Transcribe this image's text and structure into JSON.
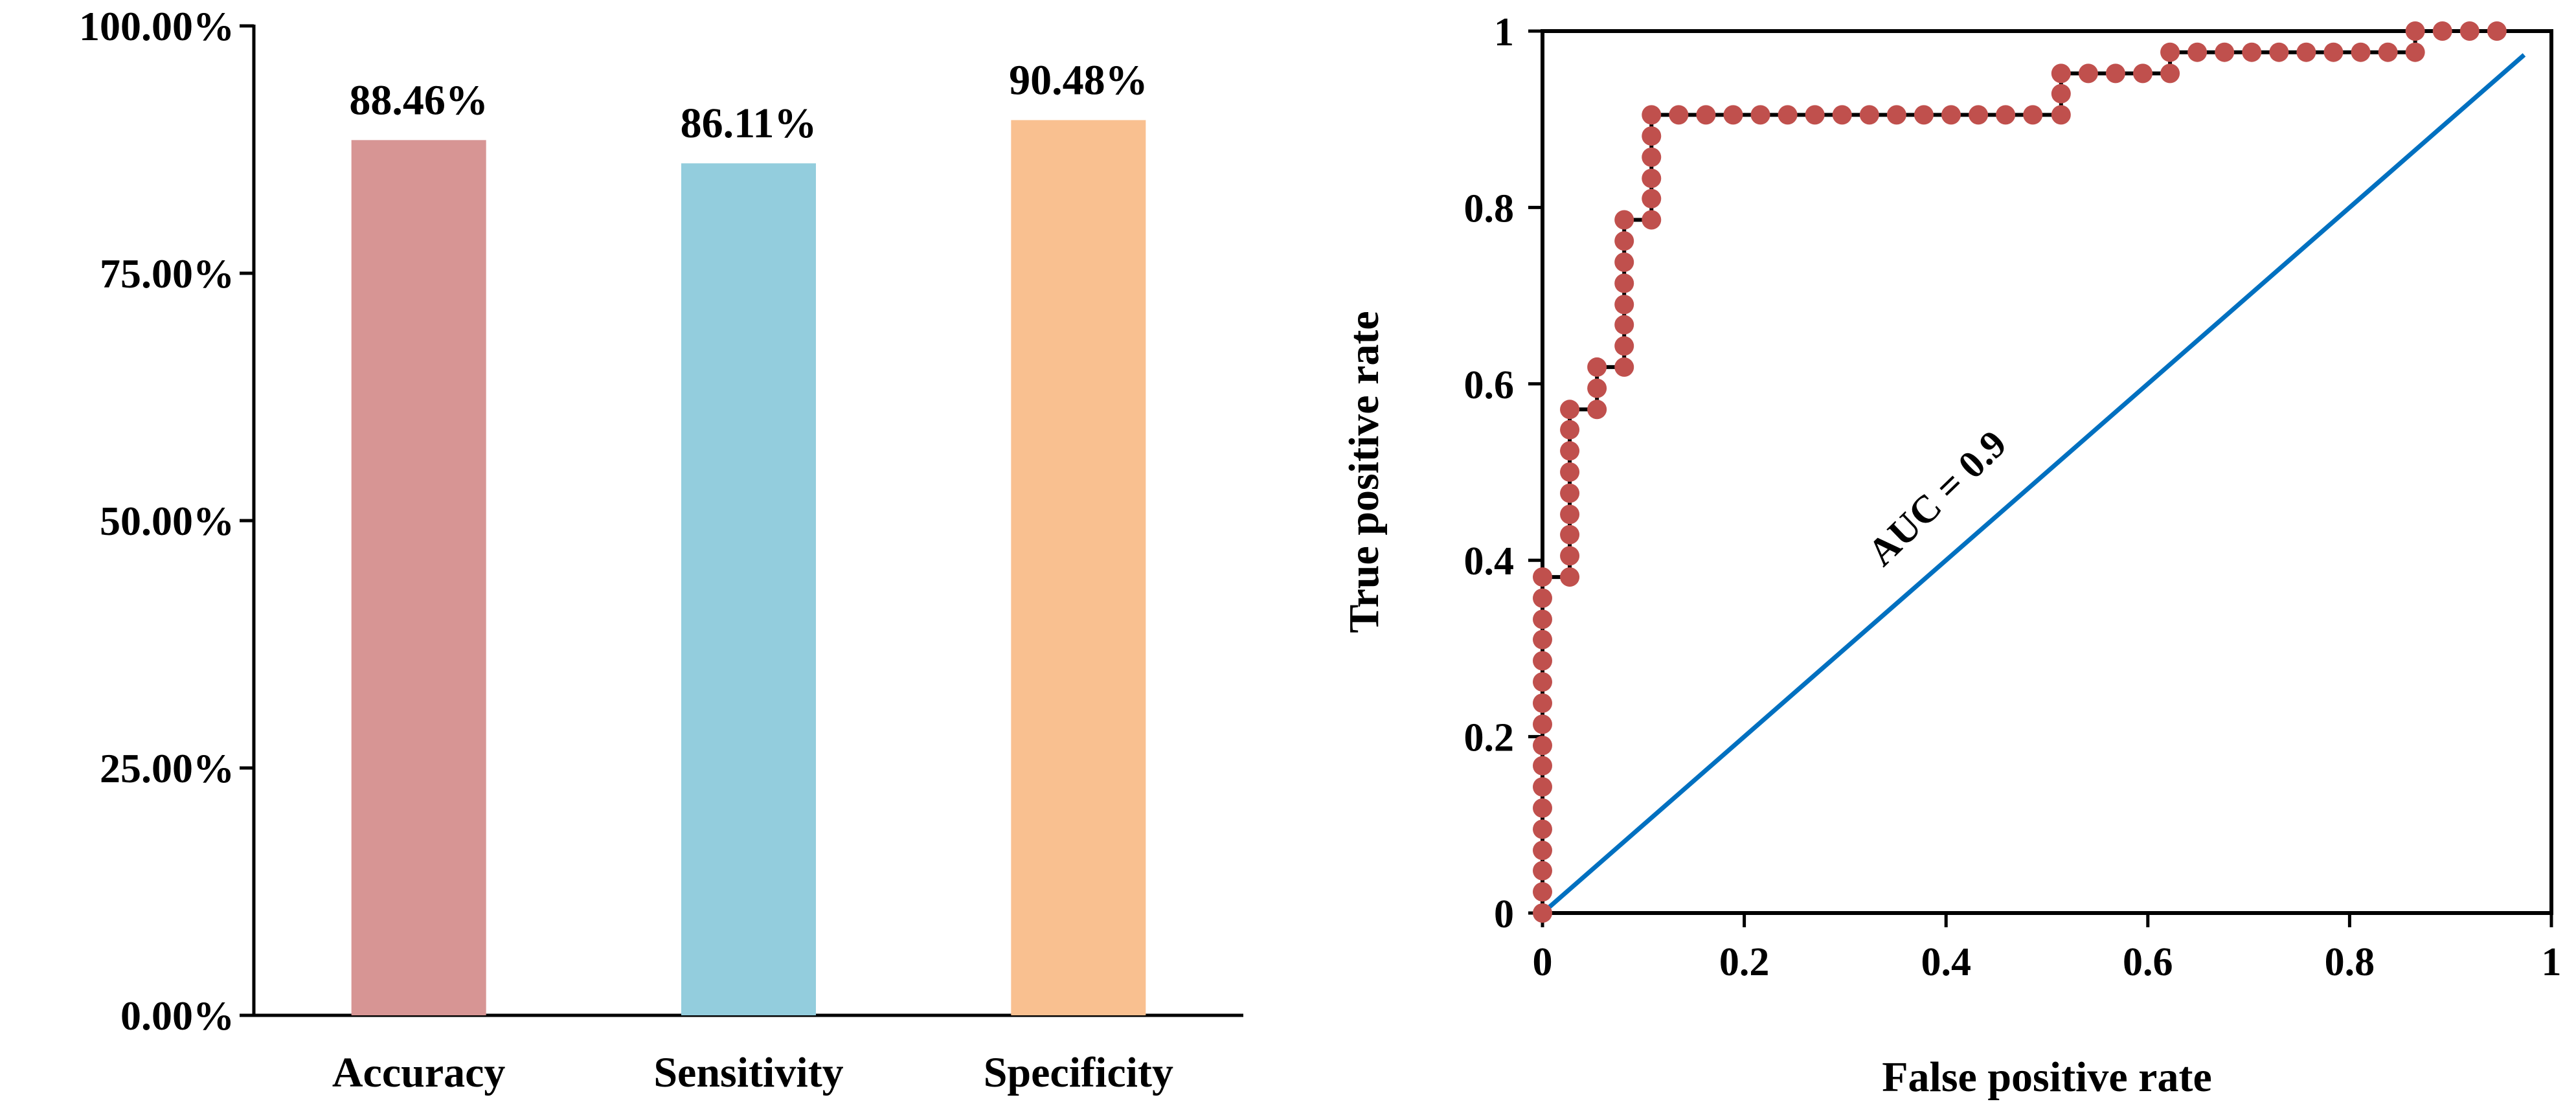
{
  "chart_data": [
    {
      "type": "bar",
      "categories": [
        "Accuracy",
        "Sensitivity",
        "Specificity"
      ],
      "values": [
        88.46,
        86.11,
        90.48
      ],
      "value_labels": [
        "88.46%",
        "86.11%",
        "90.48%"
      ],
      "colors": [
        "#D79594",
        "#93CDDD",
        "#F9C090"
      ],
      "ylim": [
        0,
        100
      ],
      "yticks": [
        0,
        25,
        50,
        75,
        100
      ],
      "ytick_labels": [
        "0.00%",
        "25.00%",
        "50.00%",
        "75.00%",
        "100.00%"
      ],
      "title": "",
      "xlabel": "",
      "ylabel": ""
    },
    {
      "type": "line",
      "title": "",
      "xlabel": "False positive rate",
      "ylabel": "True positive rate",
      "xlim": [
        0,
        1
      ],
      "ylim": [
        0,
        1
      ],
      "xticks": [
        0,
        0.2,
        0.4,
        0.6,
        0.8,
        1
      ],
      "xtick_labels": [
        "0",
        "0.2",
        "0.4",
        "0.6",
        "0.8",
        "1"
      ],
      "yticks": [
        0,
        0.2,
        0.4,
        0.6,
        0.8,
        1
      ],
      "ytick_labels": [
        "0",
        "0.2",
        "0.4",
        "0.6",
        "0.8",
        "1"
      ],
      "annotation": "AUC = 0.9",
      "series": [
        {
          "name": "ROC curve",
          "color": "#C0504D",
          "points": [
            [
              0,
              0
            ],
            [
              0,
              0.024
            ],
            [
              0,
              0.048
            ],
            [
              0,
              0.071
            ],
            [
              0,
              0.095
            ],
            [
              0,
              0.119
            ],
            [
              0,
              0.143
            ],
            [
              0,
              0.167
            ],
            [
              0,
              0.19
            ],
            [
              0,
              0.214
            ],
            [
              0,
              0.238
            ],
            [
              0,
              0.262
            ],
            [
              0,
              0.286
            ],
            [
              0,
              0.31
            ],
            [
              0,
              0.333
            ],
            [
              0,
              0.357
            ],
            [
              0,
              0.381
            ],
            [
              0.027,
              0.381
            ],
            [
              0.027,
              0.405
            ],
            [
              0.027,
              0.429
            ],
            [
              0.027,
              0.452
            ],
            [
              0.027,
              0.476
            ],
            [
              0.027,
              0.5
            ],
            [
              0.027,
              0.524
            ],
            [
              0.027,
              0.548
            ],
            [
              0.027,
              0.571
            ],
            [
              0.054,
              0.571
            ],
            [
              0.054,
              0.595
            ],
            [
              0.054,
              0.619
            ],
            [
              0.081,
              0.619
            ],
            [
              0.081,
              0.643
            ],
            [
              0.081,
              0.667
            ],
            [
              0.081,
              0.69
            ],
            [
              0.081,
              0.714
            ],
            [
              0.081,
              0.738
            ],
            [
              0.081,
              0.762
            ],
            [
              0.081,
              0.786
            ],
            [
              0.108,
              0.786
            ],
            [
              0.108,
              0.81
            ],
            [
              0.108,
              0.833
            ],
            [
              0.108,
              0.857
            ],
            [
              0.108,
              0.881
            ],
            [
              0.108,
              0.905
            ],
            [
              0.135,
              0.905
            ],
            [
              0.162,
              0.905
            ],
            [
              0.189,
              0.905
            ],
            [
              0.216,
              0.905
            ],
            [
              0.243,
              0.905
            ],
            [
              0.27,
              0.905
            ],
            [
              0.297,
              0.905
            ],
            [
              0.324,
              0.905
            ],
            [
              0.351,
              0.905
            ],
            [
              0.378,
              0.905
            ],
            [
              0.405,
              0.905
            ],
            [
              0.432,
              0.905
            ],
            [
              0.459,
              0.905
            ],
            [
              0.486,
              0.905
            ],
            [
              0.514,
              0.905
            ],
            [
              0.514,
              0.929
            ],
            [
              0.514,
              0.952
            ],
            [
              0.541,
              0.952
            ],
            [
              0.568,
              0.952
            ],
            [
              0.595,
              0.952
            ],
            [
              0.622,
              0.952
            ],
            [
              0.622,
              0.976
            ],
            [
              0.649,
              0.976
            ],
            [
              0.676,
              0.976
            ],
            [
              0.703,
              0.976
            ],
            [
              0.73,
              0.976
            ],
            [
              0.757,
              0.976
            ],
            [
              0.784,
              0.976
            ],
            [
              0.811,
              0.976
            ],
            [
              0.838,
              0.976
            ],
            [
              0.865,
              0.976
            ],
            [
              0.865,
              1
            ],
            [
              0.892,
              1
            ],
            [
              0.919,
              1
            ],
            [
              0.946,
              1
            ]
          ]
        },
        {
          "name": "Reference line",
          "color": "#0070C0",
          "points": [
            [
              0,
              0
            ],
            [
              0.973,
              0.973
            ]
          ]
        }
      ]
    }
  ]
}
